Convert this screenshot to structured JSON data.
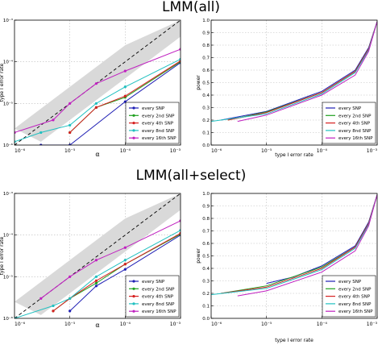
{
  "titles": [
    "LMM(all)",
    "LMM(all+select)"
  ],
  "chart_data": [
    {
      "type": "line",
      "title": "LMM(all)",
      "xlabel": "α",
      "ylabel": "type I error rate",
      "xscale": "log",
      "yscale": "log",
      "xlim": [
        1e-06,
        0.001
      ],
      "ylim": [
        1e-06,
        0.001
      ],
      "xticks": [
        "10⁻⁶",
        "10⁻⁵",
        "10⁻⁴",
        "10⁻³"
      ],
      "yticks": [
        "10⁻⁶",
        "10⁻⁵",
        "10⁻⁴",
        "10⁻³"
      ],
      "grid": true,
      "legend_position": "bottom-right",
      "reference": "y = x (dashed) with shaded interval",
      "series": [
        {
          "name": "every SNP",
          "color": "#1f1fb4",
          "x": [
            3e-06,
            1e-05,
            0.0001,
            0.001
          ],
          "y": [
            1e-06,
            1e-06,
            1.1e-05,
            9.5e-05
          ]
        },
        {
          "name": "every 2nd SNP",
          "color": "#1fa01f",
          "x": [
            1e-05,
            3e-05,
            0.0001,
            0.001
          ],
          "y": [
            2e-06,
            8e-06,
            1.4e-05,
            0.0001
          ]
        },
        {
          "name": "every 4th SNP",
          "color": "#d62020",
          "x": [
            1e-05,
            3e-05,
            0.0001,
            0.001
          ],
          "y": [
            2e-06,
            8e-06,
            1.5e-05,
            0.000105
          ]
        },
        {
          "name": "every 8nd SNP",
          "color": "#20c0c0",
          "x": [
            1e-06,
            3e-06,
            1e-05,
            3e-05,
            0.0001,
            0.001
          ],
          "y": [
            1.2e-06,
            2e-06,
            3e-06,
            1e-05,
            2.5e-05,
            0.000115
          ]
        },
        {
          "name": "every 16th SNP",
          "color": "#c020c0",
          "x": [
            1e-06,
            5e-06,
            1e-05,
            3e-05,
            0.0001,
            0.001
          ],
          "y": [
            2e-06,
            4e-06,
            1e-05,
            3e-05,
            6e-05,
            0.0002
          ]
        }
      ]
    },
    {
      "type": "line",
      "title": "",
      "xlabel": "type I error rate",
      "ylabel": "power",
      "xscale": "log",
      "xlim": [
        1e-06,
        0.001
      ],
      "ylim": [
        0.0,
        1.0
      ],
      "xticks": [
        "10⁻⁶",
        "10⁻⁵",
        "10⁻⁴",
        "10⁻³"
      ],
      "yticks": [
        "0.0",
        "0.1",
        "0.2",
        "0.3",
        "0.4",
        "0.5",
        "0.6",
        "0.7",
        "0.8",
        "0.9",
        "1.0"
      ],
      "grid": true,
      "legend_position": "bottom-right",
      "series": [
        {
          "name": "every SNP",
          "color": "#1f1fb4",
          "x": [
            1.5e-06,
            1e-05,
            0.0001,
            0.0004,
            0.0007,
            0.001
          ],
          "y": [
            0.2,
            0.27,
            0.43,
            0.6,
            0.78,
            0.99
          ]
        },
        {
          "name": "every 2nd SNP",
          "color": "#1fa01f",
          "x": [
            2e-06,
            1e-05,
            0.0001,
            0.0004,
            0.0007,
            0.001
          ],
          "y": [
            0.2,
            0.265,
            0.42,
            0.59,
            0.77,
            0.99
          ]
        },
        {
          "name": "every 4th SNP",
          "color": "#d62020",
          "x": [
            2e-06,
            1e-05,
            0.0001,
            0.0004,
            0.0007,
            0.001
          ],
          "y": [
            0.2,
            0.26,
            0.42,
            0.59,
            0.77,
            0.99
          ]
        },
        {
          "name": "every 8nd SNP",
          "color": "#20c0c0",
          "x": [
            1e-06,
            1e-05,
            0.0001,
            0.0004,
            0.0007,
            0.001
          ],
          "y": [
            0.19,
            0.25,
            0.41,
            0.58,
            0.76,
            0.99
          ]
        },
        {
          "name": "every 16th SNP",
          "color": "#c020c0",
          "x": [
            3e-06,
            1e-05,
            0.0001,
            0.0004,
            0.0007,
            0.001
          ],
          "y": [
            0.19,
            0.24,
            0.4,
            0.56,
            0.75,
            0.99
          ]
        }
      ]
    },
    {
      "type": "line",
      "title": "LMM(all+select)",
      "xlabel": "α",
      "ylabel": "type I error rate",
      "xscale": "log",
      "yscale": "log",
      "xlim": [
        1e-06,
        0.001
      ],
      "ylim": [
        1e-06,
        0.001
      ],
      "xticks": [
        "10⁻⁶",
        "10⁻⁵",
        "10⁻⁴",
        "10⁻³"
      ],
      "yticks": [
        "10⁻⁶",
        "10⁻⁵",
        "10⁻⁴",
        "10⁻³"
      ],
      "grid": true,
      "legend_position": "bottom-right",
      "reference": "y = x (dashed) with shaded interval",
      "series": [
        {
          "name": "every SNP",
          "color": "#1f1fb4",
          "x": [
            1e-05,
            3e-05,
            0.0001,
            0.001
          ],
          "y": [
            1.5e-06,
            6e-06,
            1.5e-05,
            0.0001
          ]
        },
        {
          "name": "every 2nd SNP",
          "color": "#1fa01f",
          "x": [
            5e-06,
            1e-05,
            3e-05,
            0.0001,
            0.001
          ],
          "y": [
            1.5e-06,
            3e-06,
            7e-06,
            2e-05,
            0.000105
          ]
        },
        {
          "name": "every 4th SNP",
          "color": "#d62020",
          "x": [
            5e-06,
            1e-05,
            3e-05,
            0.0001,
            0.001
          ],
          "y": [
            1.5e-06,
            3e-06,
            8e-06,
            2e-05,
            0.00011
          ]
        },
        {
          "name": "every 8nd SNP",
          "color": "#20c0c0",
          "x": [
            1e-06,
            5e-06,
            1e-05,
            3e-05,
            0.0001,
            0.001
          ],
          "y": [
            1e-06,
            2e-06,
            3e-06,
            1e-05,
            2.5e-05,
            0.00013
          ]
        },
        {
          "name": "every 16th SNP",
          "color": "#c020c0",
          "x": [
            3e-06,
            1e-05,
            3e-05,
            0.0001,
            0.001
          ],
          "y": [
            3e-06,
            1e-05,
            2.5e-05,
            5e-05,
            0.00022
          ]
        }
      ]
    },
    {
      "type": "line",
      "title": "",
      "xlabel": "type I error rate",
      "ylabel": "power",
      "xscale": "log",
      "xlim": [
        1e-06,
        0.001
      ],
      "ylim": [
        0.0,
        1.0
      ],
      "xticks": [
        "10⁻⁶",
        "10⁻⁵",
        "10⁻⁴",
        "10⁻³"
      ],
      "yticks": [
        "0.0",
        "0.1",
        "0.2",
        "0.3",
        "0.4",
        "0.5",
        "0.6",
        "0.7",
        "0.8",
        "0.9",
        "1.0"
      ],
      "grid": true,
      "legend_position": "bottom-right",
      "series": [
        {
          "name": "every SNP",
          "color": "#1f1fb4",
          "x": [
            1e-05,
            3e-05,
            0.0001,
            0.0004,
            0.0007,
            0.001
          ],
          "y": [
            0.28,
            0.33,
            0.42,
            0.58,
            0.77,
            0.99
          ]
        },
        {
          "name": "every 2nd SNP",
          "color": "#1fa01f",
          "x": [
            1.5e-06,
            1e-05,
            0.0001,
            0.0004,
            0.0007,
            0.001
          ],
          "y": [
            0.2,
            0.26,
            0.41,
            0.57,
            0.76,
            0.99
          ]
        },
        {
          "name": "every 4th SNP",
          "color": "#d62020",
          "x": [
            1.5e-06,
            1e-05,
            0.0001,
            0.0004,
            0.0007,
            0.001
          ],
          "y": [
            0.2,
            0.25,
            0.4,
            0.57,
            0.76,
            0.99
          ]
        },
        {
          "name": "every 8nd SNP",
          "color": "#20c0c0",
          "x": [
            1e-06,
            1e-05,
            0.0001,
            0.0004,
            0.0007,
            0.001
          ],
          "y": [
            0.19,
            0.24,
            0.39,
            0.56,
            0.75,
            0.99
          ]
        },
        {
          "name": "every 16th SNP",
          "color": "#c020c0",
          "x": [
            3e-06,
            1e-05,
            0.0001,
            0.0004,
            0.0007,
            0.001
          ],
          "y": [
            0.18,
            0.22,
            0.37,
            0.54,
            0.74,
            0.99
          ]
        }
      ]
    }
  ]
}
